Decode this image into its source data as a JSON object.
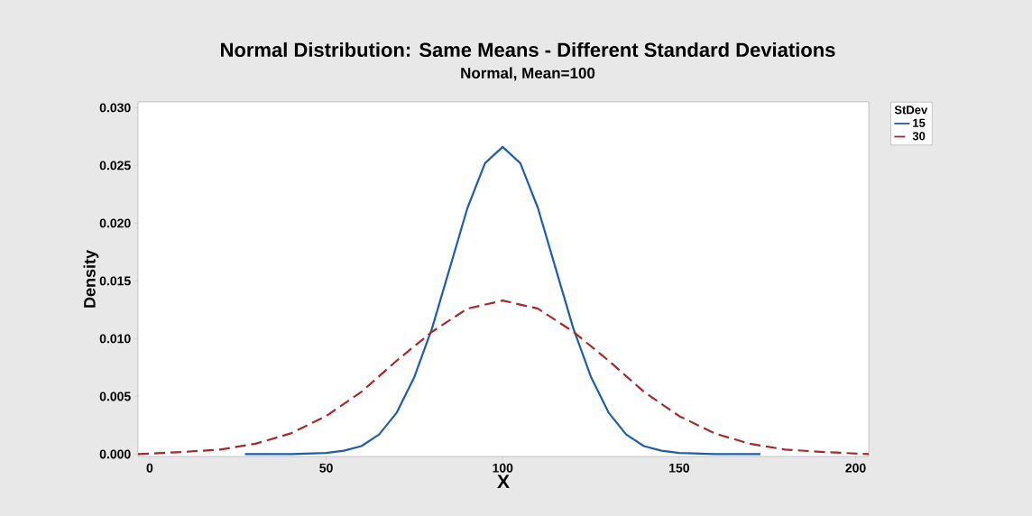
{
  "chart_data": {
    "type": "line",
    "title": "Normal Distribution: Same Means - Different Standard Deviations",
    "subtitle": "Normal, Mean=100",
    "xlabel": "X",
    "ylabel": "Density",
    "legend_title": "StDev",
    "xlim": [
      -3.3,
      203.7
    ],
    "ylim": [
      -0.0002,
      0.0305
    ],
    "xticks": [
      0,
      50,
      100,
      150,
      200
    ],
    "yticks": [
      {
        "value": 0,
        "label": "0.000"
      },
      {
        "value": 0.005,
        "label": "0.005"
      },
      {
        "value": 0.01,
        "label": "0.010"
      },
      {
        "value": 0.015,
        "label": "0.015"
      },
      {
        "value": 0.02,
        "label": "0.020"
      },
      {
        "value": 0.025,
        "label": "0.025"
      },
      {
        "value": 0.03,
        "label": "0.030"
      }
    ],
    "grid": false,
    "legend": "right",
    "marker": "none",
    "series": [
      {
        "name": "15",
        "color": "#1f5ea8",
        "line_style": "solid",
        "x": [
          27,
          40,
          50,
          55,
          60,
          65,
          70,
          75,
          80,
          85,
          90,
          95,
          100,
          105,
          110,
          115,
          120,
          125,
          130,
          135,
          140,
          145,
          150,
          160,
          173
        ],
        "values": [
          0.0,
          0.0,
          0.0001,
          0.0003,
          0.0007,
          0.0017,
          0.0036,
          0.0067,
          0.0109,
          0.0161,
          0.0213,
          0.0252,
          0.0266,
          0.0252,
          0.0213,
          0.0161,
          0.0109,
          0.0067,
          0.0036,
          0.0017,
          0.0007,
          0.0003,
          0.0001,
          0.0,
          0.0
        ]
      },
      {
        "name": "30",
        "color": "#a52a2a",
        "line_style": "dashed",
        "x": [
          -3.3,
          10,
          20,
          30,
          40,
          50,
          60,
          70,
          80,
          90,
          100,
          110,
          120,
          130,
          140,
          150,
          160,
          170,
          180,
          190,
          203.7
        ],
        "values": [
          0.0,
          0.0002,
          0.0004,
          0.0009,
          0.0018,
          0.0033,
          0.0054,
          0.0081,
          0.0106,
          0.0126,
          0.0133,
          0.0126,
          0.0106,
          0.0081,
          0.0054,
          0.0033,
          0.0018,
          0.0009,
          0.0004,
          0.0002,
          0.0
        ]
      }
    ]
  }
}
